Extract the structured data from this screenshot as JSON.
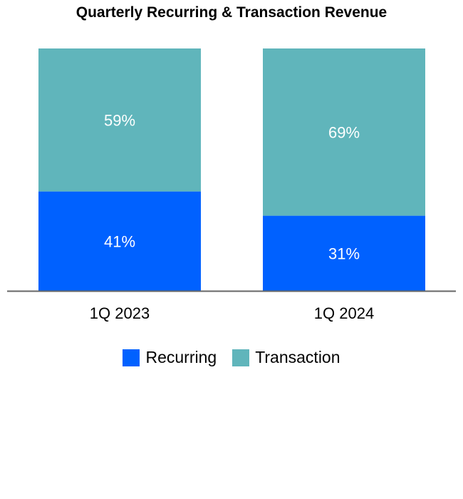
{
  "chart_data": {
    "type": "bar",
    "stacked": true,
    "title": "Quarterly Recurring & Transaction Revenue",
    "categories": [
      "1Q 2023",
      "1Q 2024"
    ],
    "series": [
      {
        "name": "Recurring",
        "color": "#0061FF",
        "values": [
          41,
          31
        ],
        "labels": [
          "41%",
          "31%"
        ]
      },
      {
        "name": "Transaction",
        "color": "#60B5BB",
        "values": [
          59,
          69
        ],
        "labels": [
          "59%",
          "69%"
        ]
      }
    ],
    "ylim": [
      0,
      100
    ],
    "xlabel": "",
    "ylabel": "",
    "grid": false,
    "legend_position": "bottom"
  }
}
